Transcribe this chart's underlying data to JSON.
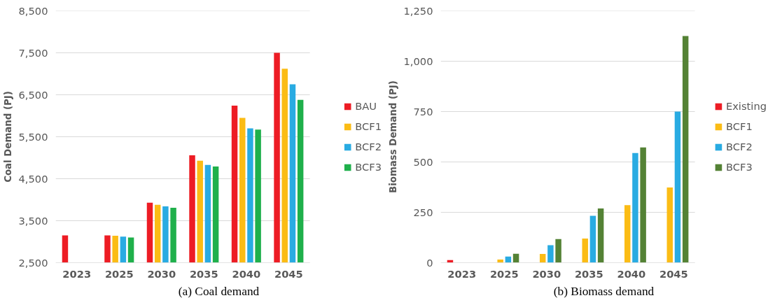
{
  "chart_data": [
    {
      "type": "bar",
      "ylabel": "Coal Demand (PJ)",
      "categories": [
        "2023",
        "2025",
        "2030",
        "2035",
        "2040",
        "2045"
      ],
      "series": [
        {
          "name": "BAU",
          "color": "#ed1c24",
          "values": [
            3150,
            3150,
            3930,
            5060,
            6240,
            7500
          ]
        },
        {
          "name": "BCF1",
          "color": "#fbbc15",
          "values": [
            null,
            3140,
            3880,
            4930,
            5950,
            7120
          ]
        },
        {
          "name": "BCF2",
          "color": "#29abe2",
          "values": [
            null,
            3120,
            3840,
            4830,
            5700,
            6750
          ]
        },
        {
          "name": "BCF3",
          "color": "#1fb04b",
          "values": [
            null,
            3100,
            3810,
            4790,
            5670,
            6380
          ]
        }
      ],
      "ylim": [
        2500,
        8500
      ],
      "yticks": [
        {
          "value": 2500,
          "label": "2,500"
        },
        {
          "value": 3500,
          "label": "3,500"
        },
        {
          "value": 4500,
          "label": "4,500"
        },
        {
          "value": 5500,
          "label": "5,500"
        },
        {
          "value": 6500,
          "label": "6,500"
        },
        {
          "value": 7500,
          "label": "7,500"
        },
        {
          "value": 8500,
          "label": "8,500"
        }
      ],
      "grid": "y",
      "legend": "right",
      "annotations": [
        "(a) Coal demand"
      ]
    },
    {
      "type": "bar",
      "ylabel": "Biomass Demand (PJ)",
      "categories": [
        "2023",
        "2025",
        "2030",
        "2035",
        "2040",
        "2045"
      ],
      "series": [
        {
          "name": "Existing",
          "color": "#ed1c24",
          "values": [
            13,
            null,
            null,
            null,
            null,
            null
          ]
        },
        {
          "name": "BCF1",
          "color": "#fbbc15",
          "values": [
            null,
            16,
            43,
            120,
            286,
            373
          ]
        },
        {
          "name": "BCF2",
          "color": "#29abe2",
          "values": [
            null,
            30,
            87,
            233,
            544,
            750
          ]
        },
        {
          "name": "BCF3",
          "color": "#548235",
          "values": [
            null,
            44,
            117,
            269,
            572,
            1125
          ]
        }
      ],
      "ylim": [
        0,
        1250
      ],
      "yticks": [
        0,
        250,
        500,
        750,
        {
          "value": 1000,
          "label": "1,000"
        },
        {
          "value": 1250,
          "label": "1,250"
        }
      ],
      "grid": "y",
      "legend": "right",
      "annotations": [
        "(b) Biomass demand"
      ]
    }
  ]
}
